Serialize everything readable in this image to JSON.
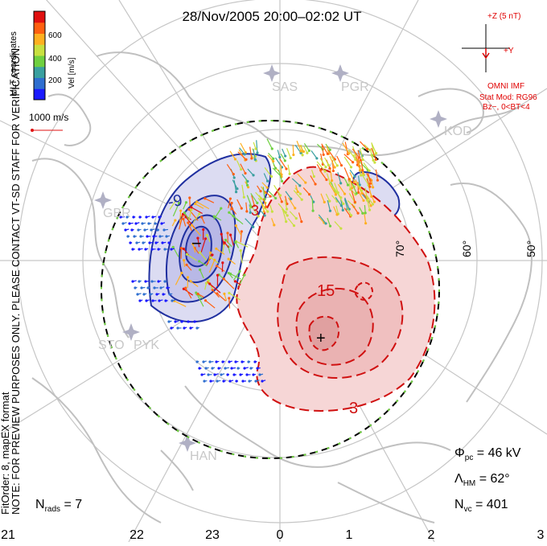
{
  "title": "28/Nov/2005 20:00–02:02 UT",
  "side_note_line1": "NOTE: FOR PREVIEW PURPOSES ONLY. PLEASE CONTACT VT-SD STAFF FOR VERIFICATION.",
  "side_note_line2": "FitOrder: 8, mapEX format",
  "coord_label": "MLT coordinates",
  "colorbar": {
    "label": "Vel [m/s]",
    "ticks": [
      "600",
      "400",
      "200"
    ],
    "colors": [
      "#1a1aff",
      "#2f6fd0",
      "#3aa0a0",
      "#6fd040",
      "#c8e040",
      "#ffb020",
      "#ff6010",
      "#e01010"
    ]
  },
  "scale_vector_label": "1000 m/s",
  "imf": {
    "z_label": "+Z (5 nT)",
    "y_label": "+Y",
    "source": "OMNI IMF",
    "model_line1": "Stat Mod: RG96",
    "model_line2": "Bz−, 0<BT<4"
  },
  "latitude_labels": [
    "70°",
    "60°",
    "50°"
  ],
  "mlt_labels": [
    "21",
    "22",
    "23",
    "0",
    "1",
    "2",
    "3"
  ],
  "stations": [
    "SAS",
    "PGR",
    "KOD",
    "GBR",
    "STO",
    "PYK",
    "HAN"
  ],
  "contour_labels": [
    "-9",
    "3",
    "15",
    "3"
  ],
  "extremum_labels": {
    "minimum": "−",
    "maximum": "+"
  },
  "stats": {
    "phi_pc_symbol": "Φ",
    "phi_pc_sub": "pc",
    "phi_pc_value": " = 46 kV",
    "lambda_hm_symbol": "Λ",
    "lambda_hm_sub": "HM",
    "lambda_hm_value": " = 62°",
    "n_vc_symbol": "N",
    "n_vc_sub": "vc",
    "n_vc_value": " = 401",
    "n_rads_symbol": "N",
    "n_rads_sub": "rads",
    "n_rads_value": " = 7"
  },
  "colors": {
    "negative_fill": "#dcdcf2",
    "negative_line": "#2030a0",
    "positive_fill": "#f6d6d6",
    "positive_line": "#d01010",
    "land": "#c0c0c0",
    "grid": "#c0c0c0",
    "imf_text": "#e00000"
  }
}
